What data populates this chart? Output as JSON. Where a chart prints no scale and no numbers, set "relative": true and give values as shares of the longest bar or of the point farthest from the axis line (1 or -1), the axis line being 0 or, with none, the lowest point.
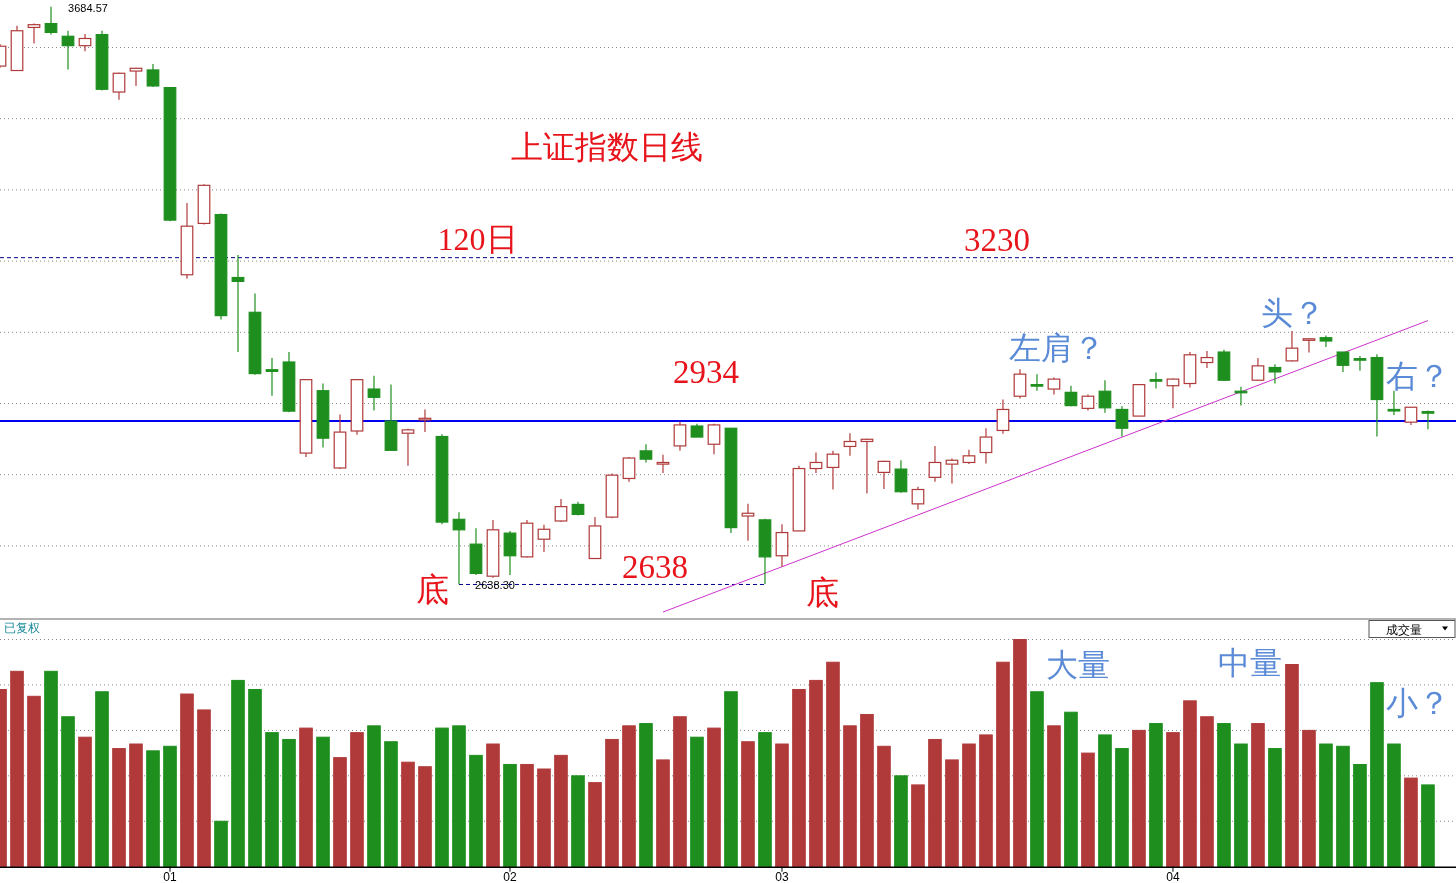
{
  "chart_data": [
    {
      "type": "candlestick",
      "title": "上证指数日线",
      "categories": [
        null,
        null,
        null,
        null,
        null,
        null,
        null,
        null,
        null,
        null,
        null,
        null,
        null,
        null,
        null,
        null,
        null,
        null,
        null,
        null,
        null,
        null,
        null,
        null,
        null,
        null,
        null,
        null,
        null,
        null,
        null,
        null,
        null,
        null,
        null,
        null,
        null,
        null,
        null,
        null,
        null,
        null,
        null,
        null,
        null,
        null,
        null,
        null,
        null,
        null,
        null,
        null,
        null,
        null,
        null,
        null,
        null,
        null,
        null,
        null,
        null,
        null,
        null,
        null,
        null,
        null,
        null,
        null,
        null,
        null,
        null,
        null,
        null,
        null,
        null,
        null,
        null,
        null,
        null,
        null,
        null,
        null,
        null,
        null,
        null
      ],
      "ohlc": [
        [
          3577,
          3617,
          3574,
          3613
        ],
        [
          3569,
          3650,
          3568,
          3641
        ],
        [
          3647,
          3654,
          3618,
          3652
        ],
        [
          3654,
          3684.57,
          3634,
          3638
        ],
        [
          3631,
          3641,
          3571,
          3614
        ],
        [
          3614,
          3635,
          3604,
          3627
        ],
        [
          3634,
          3641,
          3533,
          3535
        ],
        [
          3530,
          3565,
          3516,
          3564
        ],
        [
          3568,
          3574,
          3541,
          3573
        ],
        [
          3570,
          3581,
          3539,
          3541
        ],
        [
          3538,
          3538,
          3296,
          3298
        ],
        [
          3199,
          3329,
          3192,
          3287
        ],
        [
          3292,
          3363,
          3290,
          3361
        ],
        [
          3308,
          3310,
          3118,
          3125
        ],
        [
          3194,
          3235,
          3059,
          3187
        ],
        [
          3131,
          3165,
          3018,
          3020
        ],
        [
          3027,
          3048,
          2980,
          3024
        ],
        [
          3041,
          3059,
          2950,
          2952
        ],
        [
          2876,
          3010,
          2869,
          3009
        ],
        [
          2989,
          3002,
          2886,
          2903
        ],
        [
          2849,
          2946,
          2847,
          2914
        ],
        [
          2916,
          3010,
          2909,
          3009
        ],
        [
          2992,
          3016,
          2953,
          2977
        ],
        [
          2934,
          3000,
          2880,
          2881
        ],
        [
          2912,
          2920,
          2853,
          2918
        ],
        [
          2936,
          2955,
          2914,
          2939
        ],
        [
          2906,
          2910,
          2747,
          2751
        ],
        [
          2756,
          2769,
          2638.3,
          2737
        ],
        [
          2711,
          2740,
          2655,
          2658
        ],
        [
          2653,
          2755,
          2650,
          2737
        ],
        [
          2731,
          2735,
          2655,
          2690
        ],
        [
          2688,
          2755,
          2687,
          2749
        ],
        [
          2720,
          2746,
          2697,
          2738
        ],
        [
          2753,
          2793,
          2751,
          2779
        ],
        [
          2783,
          2788,
          2763,
          2765
        ],
        [
          2685,
          2760,
          2684,
          2744
        ],
        [
          2760,
          2839,
          2758,
          2836
        ],
        [
          2830,
          2869,
          2824,
          2867
        ],
        [
          2880,
          2892,
          2859,
          2865
        ],
        [
          2856,
          2873,
          2840,
          2859
        ],
        [
          2889,
          2933,
          2880,
          2927
        ],
        [
          2925,
          2929,
          2905,
          2905
        ],
        [
          2892,
          2929,
          2874,
          2927
        ],
        [
          2921,
          2921,
          2731,
          2741
        ],
        [
          2762,
          2784,
          2717,
          2767
        ],
        [
          2755,
          2757,
          2639,
          2688
        ],
        [
          2690,
          2747,
          2670,
          2732
        ],
        [
          2735,
          2853,
          2735,
          2848
        ],
        [
          2848,
          2877,
          2840,
          2859
        ],
        [
          2850,
          2880,
          2810,
          2874
        ],
        [
          2888,
          2912,
          2871,
          2897
        ],
        [
          2897,
          2902,
          2803,
          2901
        ],
        [
          2841,
          2862,
          2811,
          2861
        ],
        [
          2847,
          2863,
          2804,
          2806
        ],
        [
          2784,
          2815,
          2774,
          2810
        ],
        [
          2832,
          2889,
          2824,
          2859
        ],
        [
          2856,
          2866,
          2821,
          2863
        ],
        [
          2859,
          2882,
          2856,
          2871
        ],
        [
          2877,
          2921,
          2857,
          2905
        ],
        [
          2917,
          2973,
          2911,
          2955
        ],
        [
          2979,
          3028,
          2975,
          3019
        ],
        [
          3000,
          3019,
          2989,
          2998
        ],
        [
          2992,
          3013,
          2982,
          3010
        ],
        [
          2986,
          2998,
          2961,
          2962
        ],
        [
          2957,
          2982,
          2953,
          2979
        ],
        [
          2988,
          3008,
          2949,
          2958
        ],
        [
          2955,
          2961,
          2906,
          2921
        ],
        [
          2943,
          3001,
          2943,
          3000
        ],
        [
          3009,
          3022,
          2993,
          3007
        ],
        [
          2998,
          3011,
          2957,
          3010
        ],
        [
          3002,
          3059,
          2995,
          3054
        ],
        [
          3040,
          3061,
          3030,
          3049
        ],
        [
          3059,
          3063,
          3007,
          3008
        ],
        [
          2988,
          2996,
          2962,
          2987
        ],
        [
          3008,
          3048,
          3007,
          3034
        ],
        [
          3031,
          3037,
          3002,
          3023
        ],
        [
          3043,
          3097,
          3042,
          3066
        ],
        [
          3081,
          3084,
          3058,
          3083
        ],
        [
          3085,
          3089,
          3068,
          3079
        ],
        [
          3059,
          3059,
          3023,
          3035
        ],
        [
          3047,
          3052,
          3025,
          3045
        ],
        [
          3049,
          3055,
          2906,
          2973
        ],
        [
          2955,
          2989,
          2945,
          2953
        ],
        [
          2932,
          2959,
          2927,
          2959
        ],
        [
          2951,
          2953,
          2919,
          2950
        ]
      ],
      "colors": [
        "#b03a3a",
        "#b03a3a",
        "#b03a3a",
        "#1e8f1e",
        "#1e8f1e",
        "#b03a3a",
        "#1e8f1e",
        "#b03a3a",
        "#b03a3a",
        "#1e8f1e",
        "#1e8f1e",
        "#b03a3a",
        "#b03a3a",
        "#1e8f1e",
        "#1e8f1e",
        "#1e8f1e",
        "#1e8f1e",
        "#1e8f1e",
        "#b03a3a",
        "#1e8f1e",
        "#b03a3a",
        "#b03a3a",
        "#1e8f1e",
        "#1e8f1e",
        "#b03a3a",
        "#b03a3a",
        "#1e8f1e",
        "#1e8f1e",
        "#1e8f1e",
        "#b03a3a",
        "#1e8f1e",
        "#b03a3a",
        "#b03a3a",
        "#b03a3a",
        "#1e8f1e",
        "#b03a3a",
        "#b03a3a",
        "#b03a3a",
        "#1e8f1e",
        "#b03a3a",
        "#b03a3a",
        "#1e8f1e",
        "#b03a3a",
        "#1e8f1e",
        "#b03a3a",
        "#1e8f1e",
        "#b03a3a",
        "#b03a3a",
        "#b03a3a",
        "#b03a3a",
        "#b03a3a",
        "#b03a3a",
        "#b03a3a",
        "#1e8f1e",
        "#b03a3a",
        "#b03a3a",
        "#b03a3a",
        "#b03a3a",
        "#b03a3a",
        "#b03a3a",
        "#b03a3a",
        "#1e8f1e",
        "#b03a3a",
        "#1e8f1e",
        "#b03a3a",
        "#1e8f1e",
        "#1e8f1e",
        "#b03a3a",
        "#1e8f1e",
        "#b03a3a",
        "#b03a3a",
        "#b03a3a",
        "#1e8f1e",
        "#1e8f1e",
        "#b03a3a",
        "#1e8f1e",
        "#b03a3a",
        "#b03a3a",
        "#1e8f1e",
        "#1e8f1e",
        "#1e8f1e",
        "#1e8f1e",
        "#1e8f1e",
        "#b03a3a",
        "#1e8f1e"
      ],
      "series": [
        {
          "type": "line",
          "values": [
            null,
            null,
            null,
            null,
            null,
            null,
            null,
            null,
            null,
            null,
            null,
            null,
            null,
            null,
            null,
            null,
            null,
            null,
            null,
            null,
            null,
            null,
            null,
            null,
            null,
            null,
            null,
            2638,
            null,
            null,
            null,
            null,
            null,
            null,
            null,
            null,
            null,
            null,
            null,
            null,
            null,
            null,
            null,
            null,
            null,
            2638,
            null,
            null,
            null,
            null,
            null,
            null,
            null,
            null,
            null,
            null,
            null,
            null,
            null,
            null,
            null,
            null,
            null,
            null,
            null,
            null,
            null,
            null,
            null,
            null,
            null,
            null,
            null,
            null,
            null,
            null,
            null,
            null,
            null,
            null,
            null,
            null,
            null,
            null,
            null
          ],
          "color": "#00008b",
          "line_style": "dashed"
        },
        {
          "type": "line",
          "values": [
            null,
            null,
            null,
            null,
            null,
            null,
            null,
            null,
            null,
            null,
            null,
            null,
            null,
            null,
            null,
            null,
            null,
            null,
            null,
            null,
            null,
            null,
            null,
            null,
            null,
            null,
            null,
            null,
            null,
            null,
            null,
            null,
            null,
            null,
            null,
            null,
            null,
            null,
            null,
            2588,
            null,
            null,
            null,
            null,
            null,
            null,
            null,
            null,
            null,
            null,
            null,
            null,
            null,
            null,
            null,
            null,
            null,
            null,
            null,
            null,
            null,
            null,
            null,
            null,
            null,
            null,
            null,
            null,
            null,
            null,
            null,
            null,
            null,
            null,
            null,
            null,
            null,
            null,
            null,
            null,
            null,
            null,
            null,
            null,
            3116
          ],
          "color": "#cc33cc",
          "line_style": "solid"
        }
      ],
      "grid": "y",
      "ref_lines": [
        {
          "axis": "y",
          "value": 3230,
          "label": "120日",
          "color": "#00008b",
          "line_style": "dashed"
        },
        {
          "axis": "y",
          "value": 2934,
          "color": "#0000ee",
          "line_style": "solid"
        }
      ],
      "annotations": [
        "3684.57",
        "2638.30",
        "3230",
        "2934",
        "2638",
        "底",
        "底",
        "左肩？",
        "头？",
        "右？"
      ]
    },
    {
      "type": "bar",
      "title": "成交量",
      "categories": [
        null,
        null,
        null,
        null,
        null,
        null,
        null,
        null,
        null,
        null,
        "01",
        null,
        null,
        null,
        null,
        null,
        null,
        null,
        null,
        null,
        null,
        null,
        null,
        null,
        null,
        null,
        null,
        null,
        null,
        null,
        "02",
        null,
        null,
        null,
        null,
        null,
        null,
        null,
        null,
        null,
        null,
        null,
        null,
        null,
        null,
        null,
        "03",
        null,
        null,
        null,
        null,
        null,
        null,
        null,
        null,
        null,
        null,
        null,
        null,
        null,
        null,
        null,
        null,
        null,
        null,
        null,
        null,
        null,
        null,
        "04",
        null,
        null,
        null,
        null,
        null,
        null,
        null,
        null,
        null,
        null,
        null,
        null,
        null,
        null,
        null
      ],
      "values": [
        0.78,
        0.86,
        0.75,
        0.86,
        0.66,
        0.57,
        0.77,
        0.52,
        0.54,
        0.51,
        0.53,
        0.76,
        0.69,
        0.2,
        0.82,
        0.78,
        0.59,
        0.56,
        0.61,
        0.57,
        0.48,
        0.59,
        0.62,
        0.55,
        0.46,
        0.44,
        0.61,
        0.62,
        0.49,
        0.54,
        0.45,
        0.45,
        0.43,
        0.49,
        0.4,
        0.37,
        0.56,
        0.62,
        0.63,
        0.47,
        0.66,
        0.57,
        0.61,
        0.77,
        0.55,
        0.59,
        0.54,
        0.78,
        0.82,
        0.9,
        0.62,
        0.67,
        0.53,
        0.4,
        0.36,
        0.56,
        0.47,
        0.54,
        0.58,
        0.9,
        1.0,
        0.77,
        0.62,
        0.68,
        0.5,
        0.58,
        0.52,
        0.6,
        0.63,
        0.59,
        0.73,
        0.66,
        0.63,
        0.54,
        0.63,
        0.52,
        0.89,
        0.6,
        0.54,
        0.53,
        0.45,
        0.81,
        0.54,
        0.39,
        0.36
      ],
      "colors": [
        "#b03a3a",
        "#b03a3a",
        "#b03a3a",
        "#1e8f1e",
        "#1e8f1e",
        "#b03a3a",
        "#1e8f1e",
        "#b03a3a",
        "#b03a3a",
        "#1e8f1e",
        "#1e8f1e",
        "#b03a3a",
        "#b03a3a",
        "#1e8f1e",
        "#1e8f1e",
        "#1e8f1e",
        "#1e8f1e",
        "#1e8f1e",
        "#b03a3a",
        "#1e8f1e",
        "#b03a3a",
        "#b03a3a",
        "#1e8f1e",
        "#1e8f1e",
        "#b03a3a",
        "#b03a3a",
        "#1e8f1e",
        "#1e8f1e",
        "#1e8f1e",
        "#b03a3a",
        "#1e8f1e",
        "#b03a3a",
        "#b03a3a",
        "#b03a3a",
        "#1e8f1e",
        "#b03a3a",
        "#b03a3a",
        "#b03a3a",
        "#1e8f1e",
        "#b03a3a",
        "#b03a3a",
        "#1e8f1e",
        "#b03a3a",
        "#1e8f1e",
        "#b03a3a",
        "#1e8f1e",
        "#b03a3a",
        "#b03a3a",
        "#b03a3a",
        "#b03a3a",
        "#b03a3a",
        "#b03a3a",
        "#b03a3a",
        "#1e8f1e",
        "#b03a3a",
        "#b03a3a",
        "#b03a3a",
        "#b03a3a",
        "#b03a3a",
        "#b03a3a",
        "#b03a3a",
        "#1e8f1e",
        "#b03a3a",
        "#1e8f1e",
        "#b03a3a",
        "#1e8f1e",
        "#1e8f1e",
        "#b03a3a",
        "#1e8f1e",
        "#b03a3a",
        "#b03a3a",
        "#b03a3a",
        "#1e8f1e",
        "#1e8f1e",
        "#b03a3a",
        "#1e8f1e",
        "#b03a3a",
        "#b03a3a",
        "#1e8f1e",
        "#1e8f1e",
        "#1e8f1e",
        "#1e8f1e",
        "#1e8f1e",
        "#b03a3a",
        "#1e8f1e"
      ],
      "relative": true,
      "grid": "y",
      "annotations": [
        "已复权",
        "大量",
        "中量",
        "小？"
      ]
    }
  ]
}
